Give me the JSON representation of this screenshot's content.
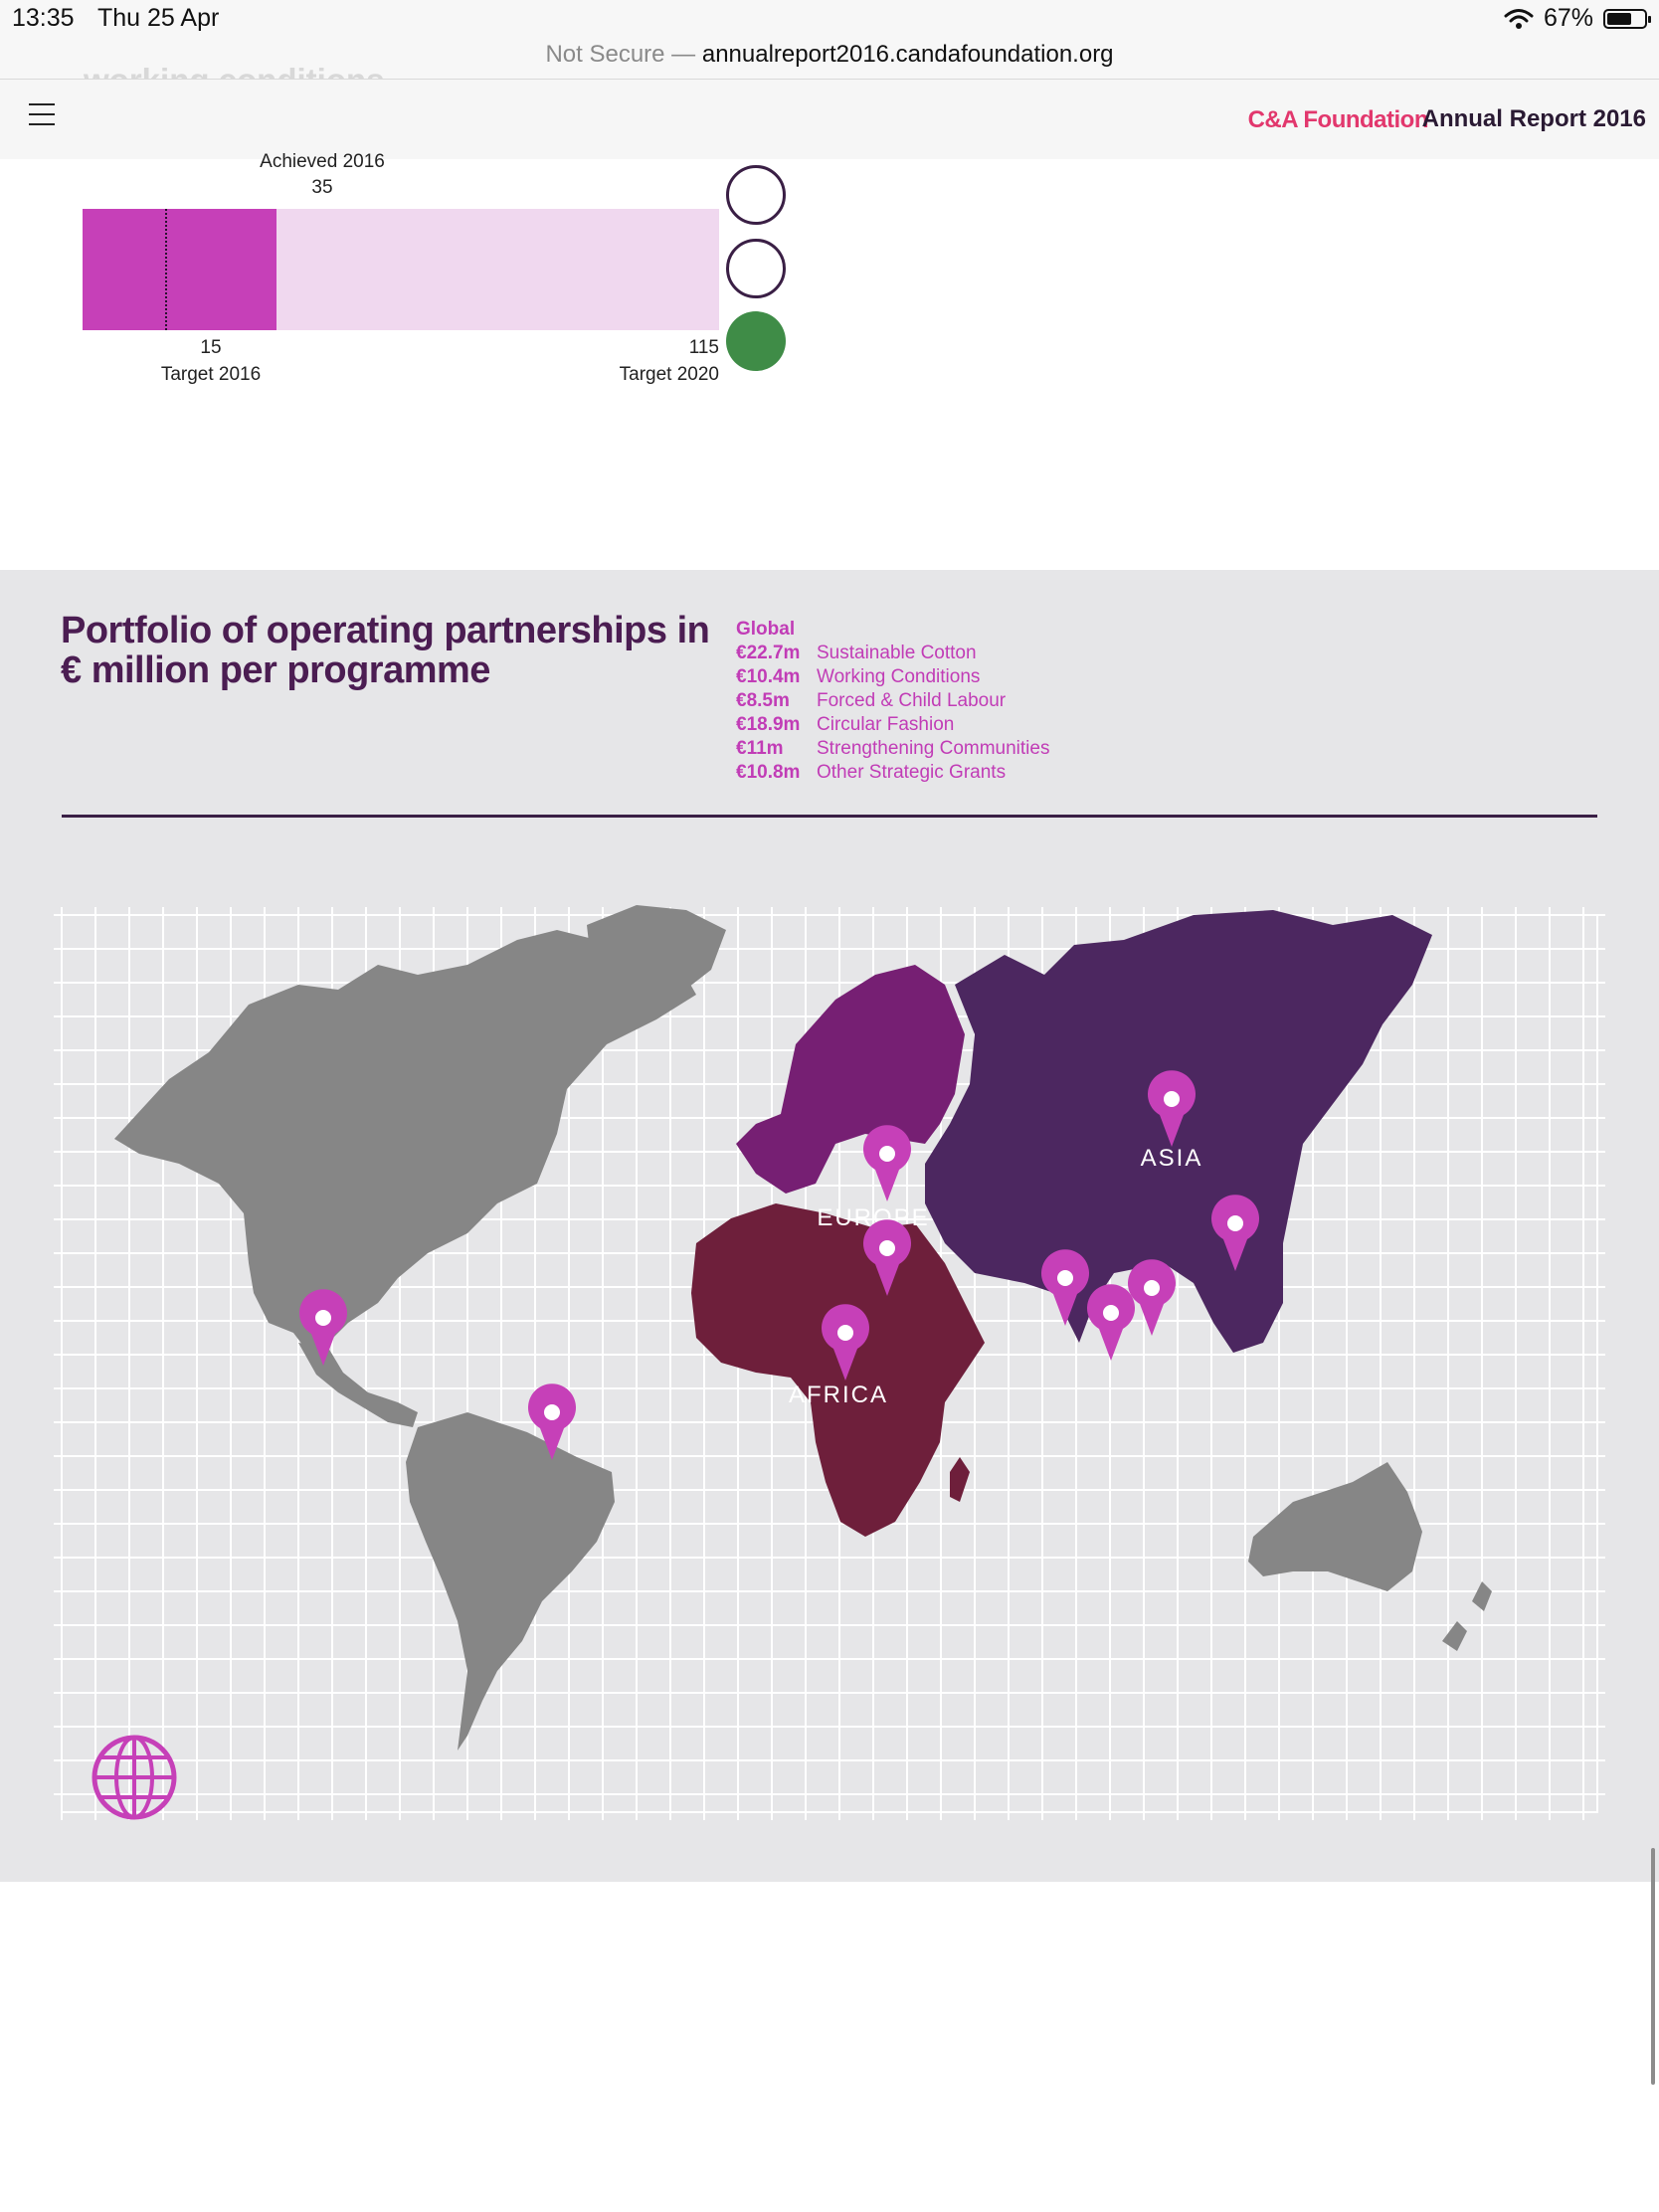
{
  "status_bar": {
    "time": "13:35",
    "date": "Thu 25 Apr",
    "battery": "67%",
    "battery_level": 0.67
  },
  "url_bar": {
    "security": "Not Secure",
    "separator": " — ",
    "host": "annualreport2016.candafoundation.org"
  },
  "partial_heading": "working conditions",
  "site_header": {
    "brand": "C&A Foundation",
    "title": "Annual Report 2016"
  },
  "progress_chart": {
    "achieved_label": "Achieved 2016",
    "achieved_value": "35",
    "target_2016_value": "15",
    "target_2016_label": "Target 2016",
    "target_2020_value": "115",
    "target_2020_label": "Target 2020",
    "scale_max": 115,
    "achieved": 35,
    "target_2016": 15,
    "status_indicators": [
      "empty",
      "empty",
      "green"
    ]
  },
  "portfolio": {
    "title": "Portfolio of operating partnerships in € million per programme",
    "legend_heading": "Global",
    "legend": [
      {
        "amount": "€22.7m",
        "name": "Sustainable Cotton"
      },
      {
        "amount": "€10.4m",
        "name": "Working Conditions"
      },
      {
        "amount": "€8.5m",
        "name": "Forced & Child Labour"
      },
      {
        "amount": "€18.9m",
        "name": "Circular Fashion"
      },
      {
        "amount": "€11m",
        "name": "Strengthening Communities"
      },
      {
        "amount": "€10.8m",
        "name": "Other Strategic Grants"
      }
    ]
  },
  "map": {
    "regions": {
      "europe": "EUROPE",
      "asia": "ASIA",
      "africa": "AFRICA"
    },
    "colors": {
      "background": "#e6e6e8",
      "grid": "#ffffff",
      "land": "#868686",
      "europe": "#761f73",
      "asia": "#4c2760",
      "africa": "#6e1f3b",
      "pin": "#c640b8",
      "accent": "#e2376d"
    },
    "pin_icon": "map-pin-icon",
    "globe_icon": "globe-icon"
  }
}
